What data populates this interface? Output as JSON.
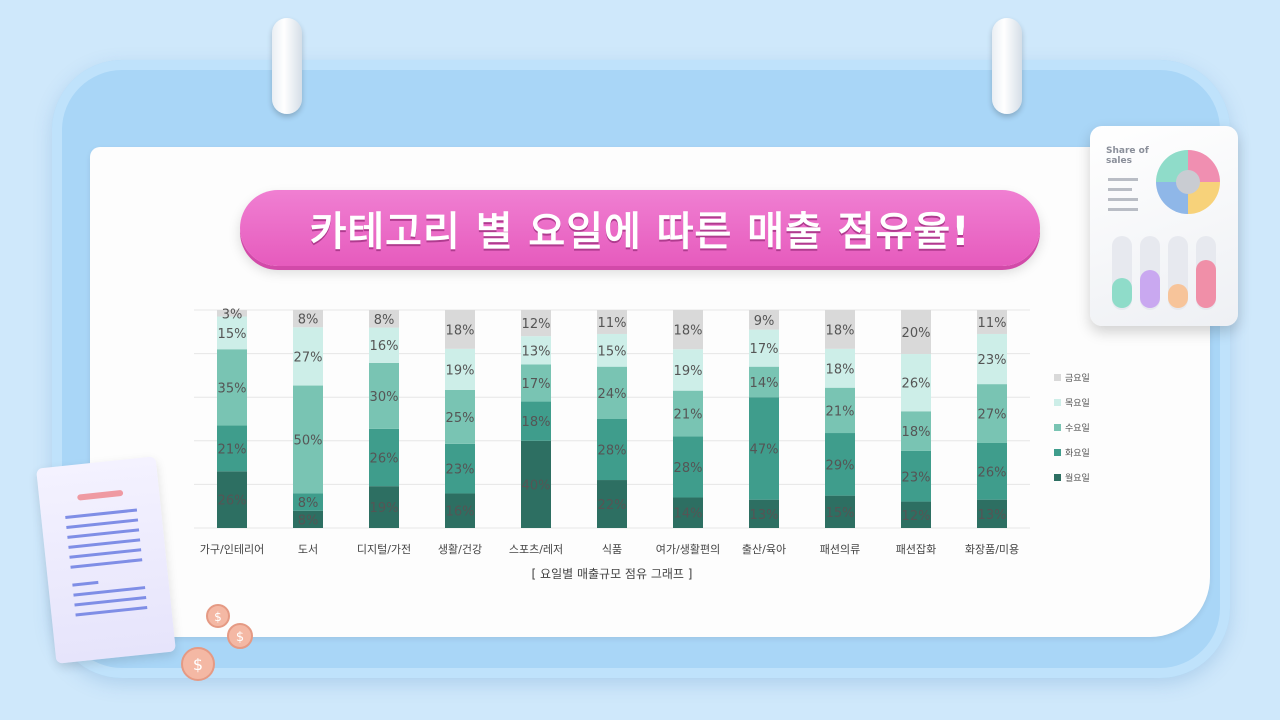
{
  "title": "카테고리 별 요일에 따른 매출 점유율!",
  "caption": "[ 요일별 매출규모 점유 그래프 ]",
  "deco_card_label": "Share of sales",
  "chart_data": {
    "type": "bar",
    "stacked": true,
    "percent": true,
    "categories": [
      "가구/인테리어",
      "도서",
      "디지털/가전",
      "생활/건강",
      "스포츠/레저",
      "식품",
      "여가/생활편의",
      "출산/육아",
      "패션의류",
      "패션잡화",
      "화장품/미용"
    ],
    "series": [
      {
        "name": "월요일",
        "color": "#2d6f62",
        "values": [
          26,
          8,
          19,
          16,
          40,
          22,
          14,
          13,
          15,
          12,
          13
        ]
      },
      {
        "name": "화요일",
        "color": "#3f9d8c",
        "values": [
          21,
          8,
          26,
          23,
          18,
          28,
          28,
          47,
          29,
          23,
          26
        ]
      },
      {
        "name": "수요일",
        "color": "#79c4b3",
        "values": [
          35,
          50,
          30,
          25,
          17,
          24,
          21,
          14,
          21,
          18,
          27
        ]
      },
      {
        "name": "목요일",
        "color": "#cdeee8",
        "values": [
          15,
          27,
          16,
          19,
          13,
          15,
          19,
          17,
          18,
          26,
          23
        ]
      },
      {
        "name": "금요일",
        "color": "#d9d9d9",
        "values": [
          3,
          8,
          8,
          18,
          12,
          11,
          18,
          9,
          18,
          20,
          11
        ]
      }
    ],
    "legend_position": "right",
    "grid": true,
    "ylim": [
      0,
      100
    ]
  }
}
